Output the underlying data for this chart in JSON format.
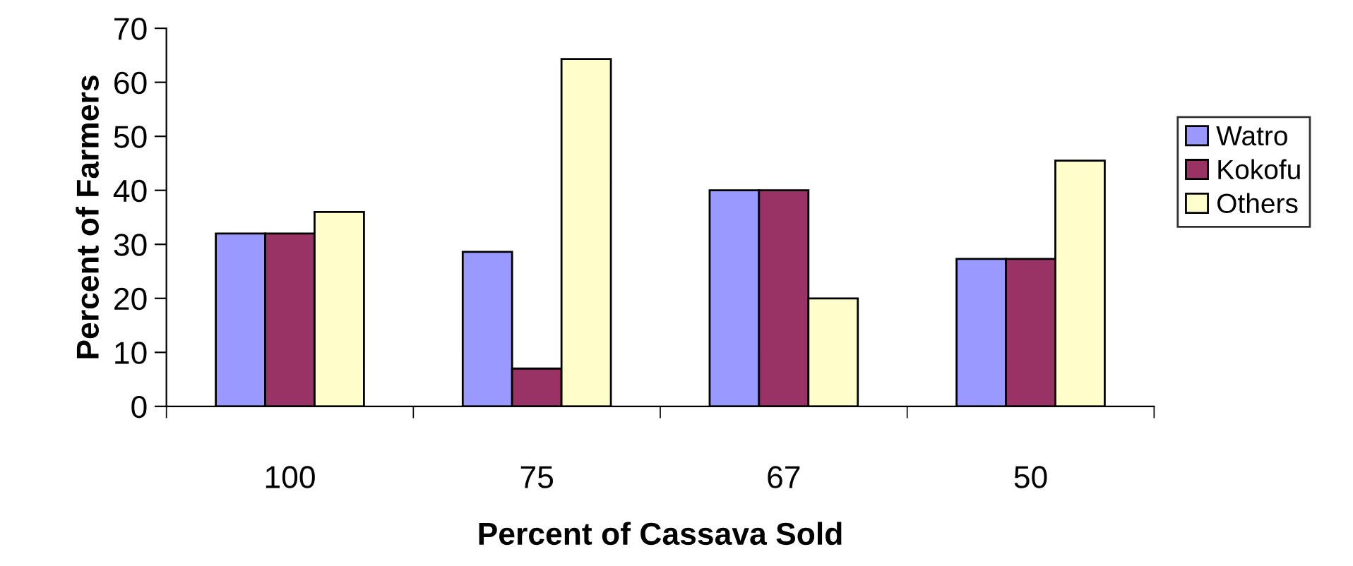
{
  "chart_data": {
    "type": "bar",
    "xlabel": "Percent of Cassava Sold",
    "ylabel": "Percent of Farmers",
    "categories": [
      "100",
      "75",
      "67",
      "50"
    ],
    "series": [
      {
        "name": "Watro",
        "color": "#9999ff",
        "values": [
          32,
          28.6,
          40,
          27.3
        ]
      },
      {
        "name": "Kokofu",
        "color": "#993366",
        "values": [
          32,
          7,
          40,
          27.3
        ]
      },
      {
        "name": "Others",
        "color": "#ffffcc",
        "values": [
          36,
          64.3,
          20,
          45.5
        ]
      }
    ],
    "ylim": [
      0,
      70
    ],
    "yticks": [
      0,
      10,
      20,
      30,
      40,
      50,
      60,
      70
    ],
    "grid": false,
    "legend": "right"
  }
}
